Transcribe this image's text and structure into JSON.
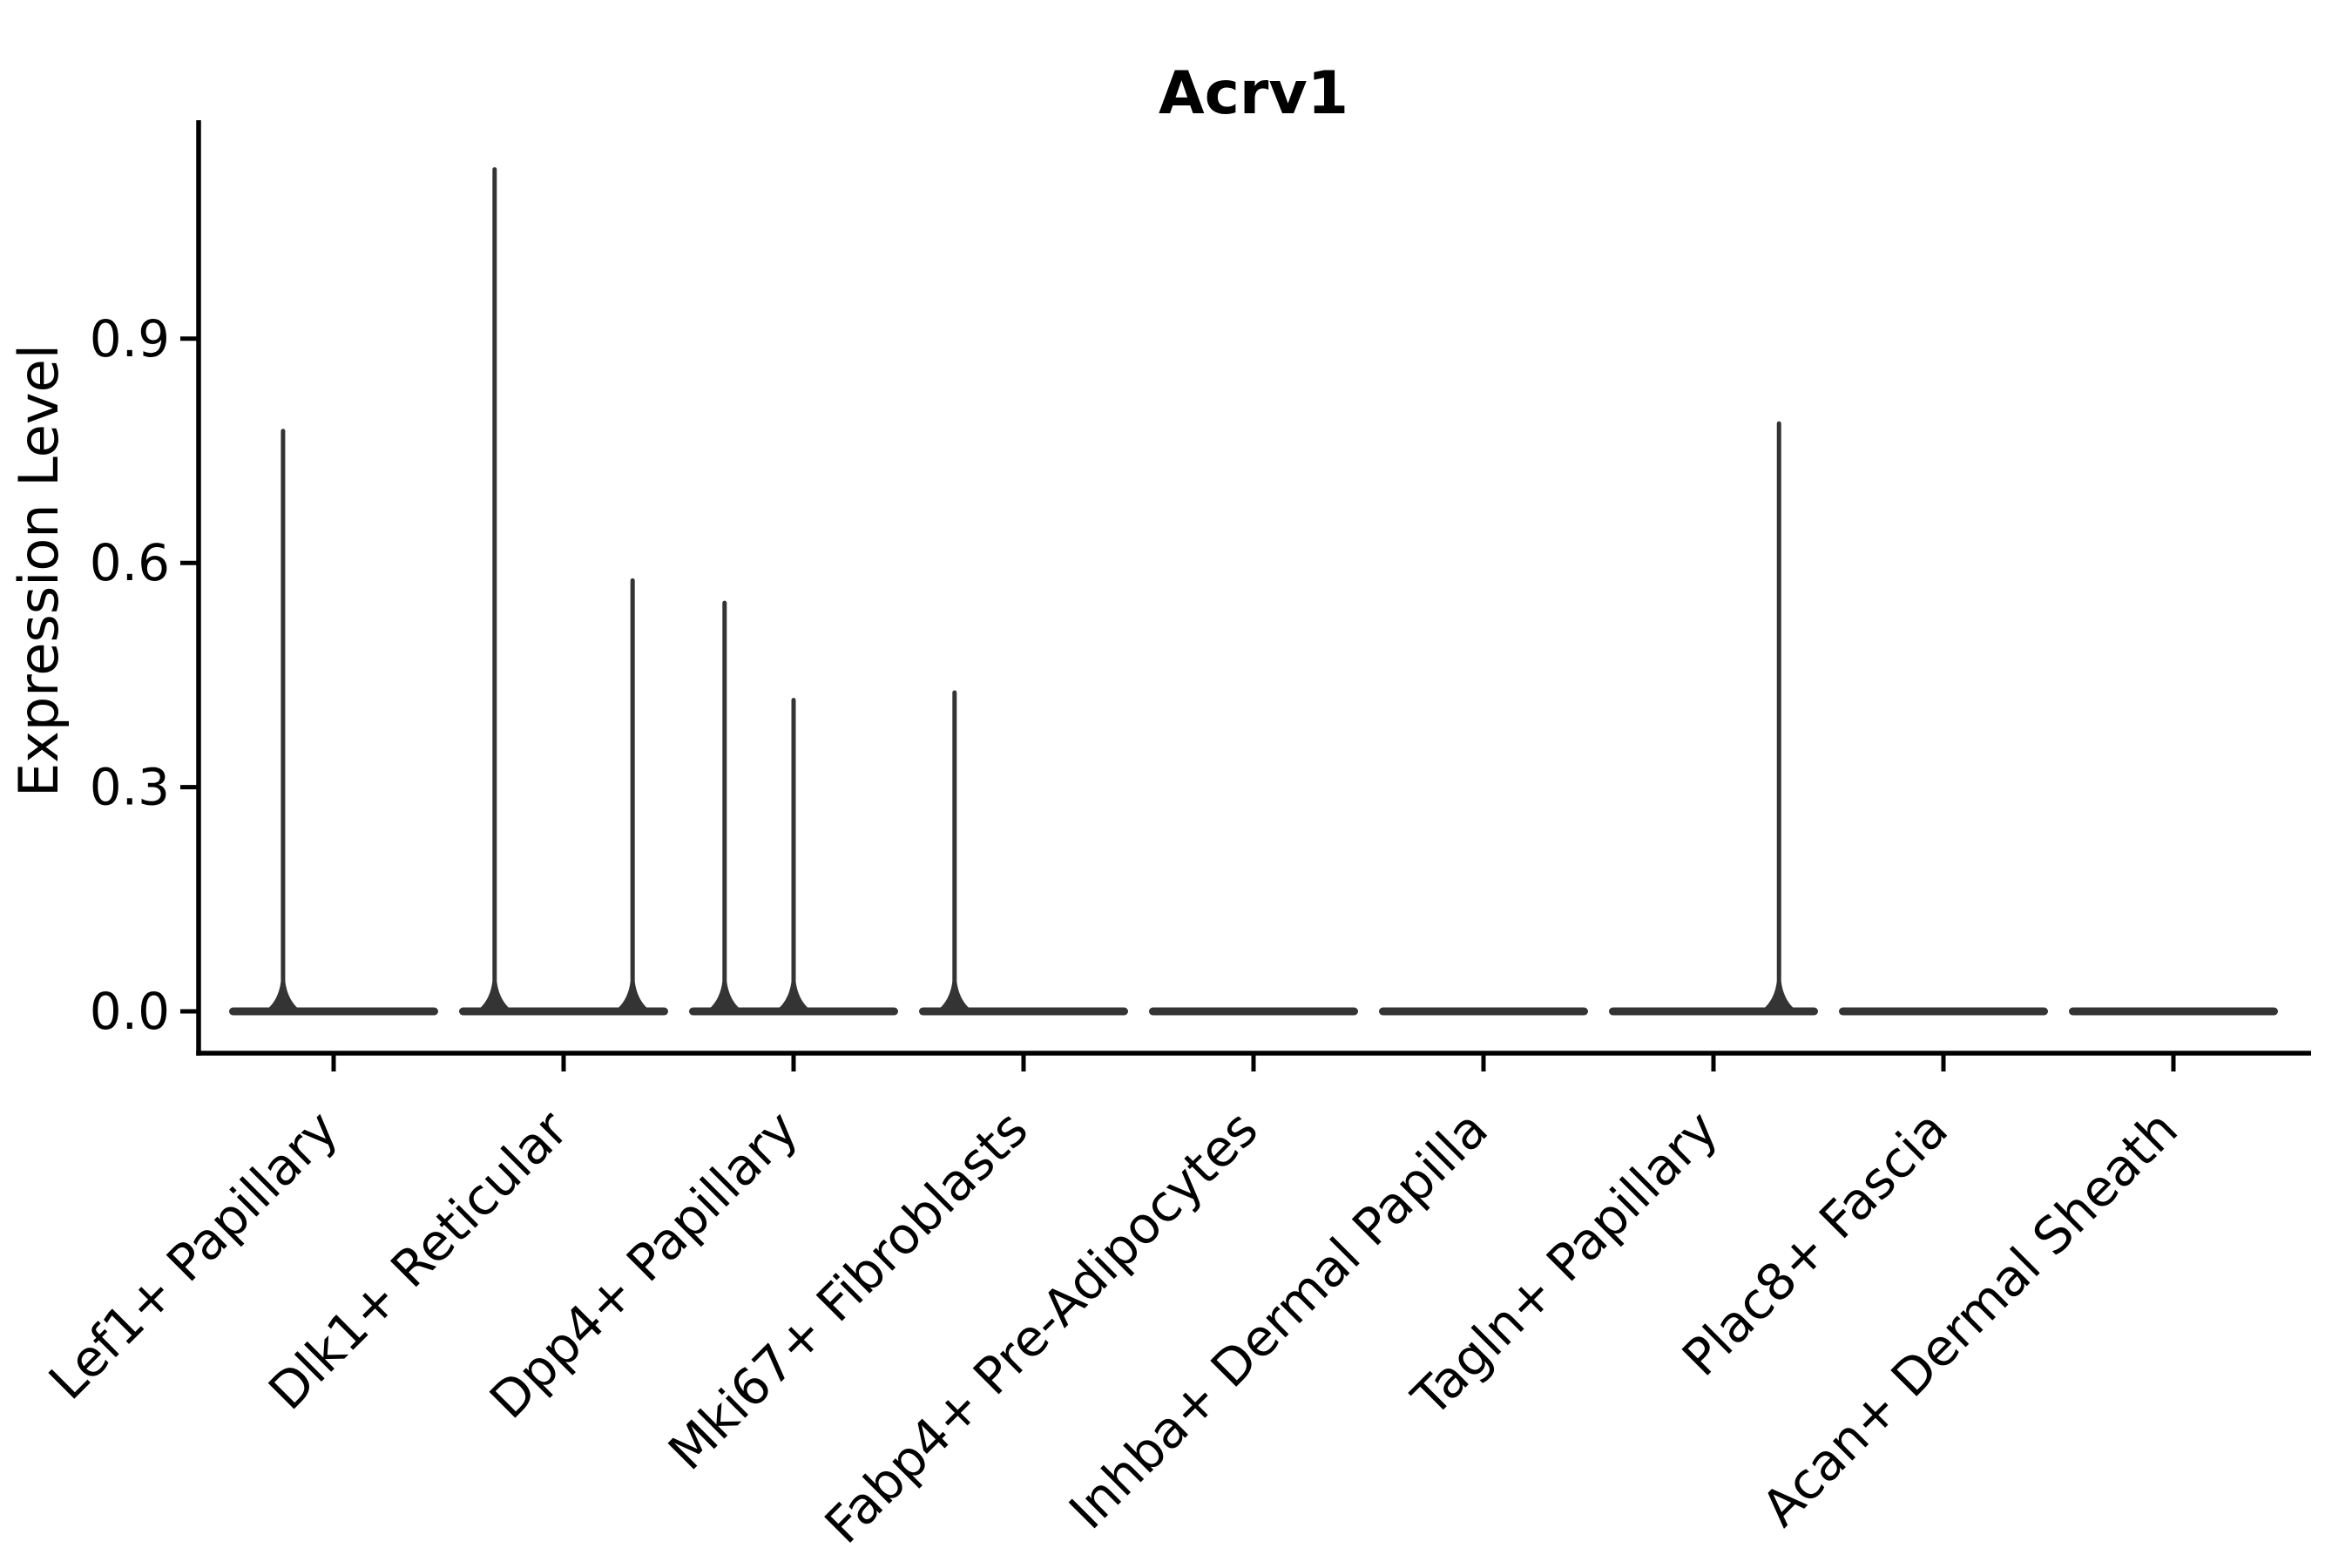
{
  "title": "Acrv1",
  "colors": {
    "violin": "#343434",
    "axis": "#000000",
    "text": "#000000",
    "background": "#ffffff"
  },
  "chart_data": {
    "type": "violin",
    "title": "Acrv1",
    "xlabel": "",
    "ylabel": "Expression Level",
    "grid": false,
    "legend": "none",
    "ytick_labels": [
      "0.0",
      "0.3",
      "0.6",
      "0.9"
    ],
    "ytick_values": [
      0.0,
      0.3,
      0.6,
      0.9
    ],
    "ylim": [
      -0.056,
      1.19
    ],
    "categories": [
      "Lef1+ Papillary",
      "Dlk1+ Reticular",
      "Dpp4+ Papillary",
      "Mki67+ Fibroblasts",
      "Fabp4+ Pre-Adipocytes",
      "Inhba+ Dermal Papilla",
      "Tagln+ Papillary",
      "Plac8+ Fascia",
      "Acan+ Dermal Sheath"
    ],
    "violins": [
      {
        "category": "Lef1+ Papillary",
        "base_value": 0.0,
        "max_expression": 0.78,
        "spikes": [
          {
            "x_offset": -0.22,
            "value": 0.78
          }
        ]
      },
      {
        "category": "Dlk1+ Reticular",
        "base_value": 0.0,
        "max_expression": 1.13,
        "spikes": [
          {
            "x_offset": -0.3,
            "value": 1.13
          },
          {
            "x_offset": 0.3,
            "value": 0.58
          }
        ]
      },
      {
        "category": "Dpp4+ Papillary",
        "base_value": 0.0,
        "max_expression": 0.55,
        "spikes": [
          {
            "x_offset": -0.3,
            "value": 0.55
          },
          {
            "x_offset": 0.0,
            "value": 0.42
          }
        ]
      },
      {
        "category": "Mki67+ Fibroblasts",
        "base_value": 0.0,
        "max_expression": 0.43,
        "spikes": [
          {
            "x_offset": -0.3,
            "value": 0.43
          }
        ]
      },
      {
        "category": "Fabp4+ Pre-Adipocytes",
        "base_value": 0.0,
        "max_expression": 0.0,
        "spikes": []
      },
      {
        "category": "Inhba+ Dermal Papilla",
        "base_value": 0.0,
        "max_expression": 0.0,
        "spikes": []
      },
      {
        "category": "Tagln+ Papillary",
        "base_value": 0.0,
        "max_expression": 0.79,
        "spikes": [
          {
            "x_offset": 0.285,
            "value": 0.79
          }
        ]
      },
      {
        "category": "Plac8+ Fascia",
        "base_value": 0.0,
        "max_expression": 0.0,
        "spikes": []
      },
      {
        "category": "Acan+ Dermal Sheath",
        "base_value": 0.0,
        "max_expression": 0.0,
        "spikes": []
      }
    ]
  }
}
